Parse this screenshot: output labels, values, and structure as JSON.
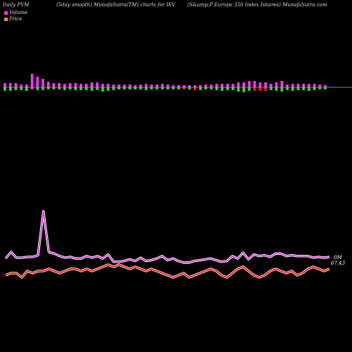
{
  "header": {
    "left": "Daily PVM",
    "center_left": "(5day smooth) MunafaSutra(TM) charts for IEV",
    "center_right": "(S&amp;P Europe 350 Index Ishares) MunafaSutra.com"
  },
  "legend": {
    "items": [
      {
        "label": "Volume",
        "color": "#ff33ff"
      },
      {
        "label": "Price",
        "color": "#ff7f50"
      }
    ]
  },
  "labels": {
    "volume_end": "0M",
    "price_end": "67.43"
  },
  "colors": {
    "background": "#000000",
    "bar_up": "#ff33ff",
    "bar_down": "#33dd33",
    "bar_red": "#ff1a1a",
    "zero_line": "#aaaaaa",
    "volume_line": "#cc33cc",
    "volume_line_glow": "#ffffff",
    "price_line": "#ff1a1a",
    "price_line_glow": "#ffffff"
  },
  "chart_data": {
    "type": "line",
    "bars": {
      "values_up": [
        6,
        6,
        6,
        4,
        4,
        19,
        15,
        12,
        8,
        6,
        6,
        5,
        6,
        6,
        5,
        5,
        7,
        7,
        5,
        5,
        4,
        4,
        4,
        4,
        3,
        4,
        5,
        4,
        4,
        5,
        4,
        3,
        3,
        3,
        3,
        3,
        3,
        4,
        4,
        5,
        5,
        5,
        5,
        7,
        7,
        9,
        9,
        7,
        7,
        5,
        7,
        9,
        4,
        5,
        5,
        5,
        5,
        5,
        4,
        3
      ],
      "values_down": [
        5,
        5,
        4,
        4,
        5,
        3,
        4,
        4,
        3,
        3,
        3,
        4,
        3,
        4,
        4,
        4,
        5,
        4,
        6,
        5,
        4,
        3,
        3,
        3,
        3,
        3,
        4,
        3,
        3,
        3,
        3,
        3,
        3,
        3,
        3,
        4,
        4,
        3,
        3,
        4,
        5,
        4,
        4,
        6,
        7,
        5,
        5,
        5,
        5,
        4,
        5,
        6,
        4,
        5,
        4,
        4,
        5,
        4,
        3,
        3
      ],
      "down_colors": [
        "g",
        "g",
        "g",
        "g",
        "g",
        "m",
        "g",
        "g",
        "g",
        "g",
        "g",
        "g",
        "g",
        "g",
        "g",
        "g",
        "g",
        "g",
        "g",
        "g",
        "g",
        "g",
        "g",
        "g",
        "g",
        "g",
        "g",
        "g",
        "g",
        "g",
        "g",
        "g",
        "g",
        "r",
        "g",
        "r",
        "g",
        "g",
        "g",
        "g",
        "g",
        "g",
        "g",
        "g",
        "g",
        "g",
        "r",
        "r",
        "r",
        "g",
        "g",
        "g",
        "g",
        "g",
        "g",
        "g",
        "g",
        "g",
        "g",
        "g"
      ]
    },
    "volume": [
      0.42,
      0.5,
      0.43,
      0.43,
      0.44,
      0.44,
      0.46,
      1.0,
      0.5,
      0.48,
      0.45,
      0.43,
      0.44,
      0.42,
      0.42,
      0.45,
      0.43,
      0.45,
      0.42,
      0.47,
      0.38,
      0.38,
      0.39,
      0.41,
      0.39,
      0.43,
      0.39,
      0.4,
      0.42,
      0.45,
      0.4,
      0.42,
      0.39,
      0.37,
      0.37,
      0.39,
      0.4,
      0.41,
      0.42,
      0.4,
      0.38,
      0.39,
      0.45,
      0.42,
      0.49,
      0.41,
      0.47,
      0.45,
      0.46,
      0.44,
      0.48,
      0.48,
      0.45,
      0.46,
      0.45,
      0.45,
      0.45,
      0.43,
      0.44,
      0.43,
      0.44
    ],
    "price": [
      0.42,
      0.43,
      0.43,
      0.41,
      0.44,
      0.43,
      0.44,
      0.44,
      0.45,
      0.44,
      0.43,
      0.44,
      0.45,
      0.45,
      0.44,
      0.45,
      0.44,
      0.45,
      0.46,
      0.47,
      0.46,
      0.47,
      0.46,
      0.45,
      0.46,
      0.45,
      0.44,
      0.45,
      0.44,
      0.43,
      0.42,
      0.41,
      0.42,
      0.43,
      0.41,
      0.42,
      0.43,
      0.44,
      0.45,
      0.44,
      0.42,
      0.41,
      0.43,
      0.45,
      0.46,
      0.44,
      0.42,
      0.41,
      0.42,
      0.44,
      0.45,
      0.44,
      0.43,
      0.44,
      0.42,
      0.43,
      0.45,
      0.46,
      0.45,
      0.44,
      0.45
    ],
    "xlabel": "",
    "ylabel": "",
    "grid": false
  }
}
